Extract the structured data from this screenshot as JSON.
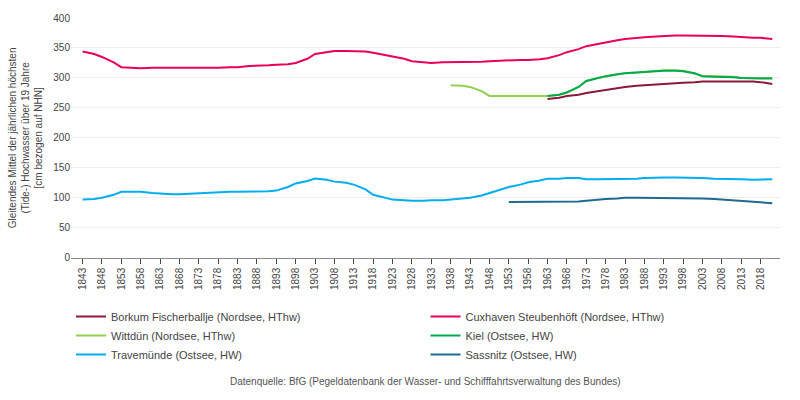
{
  "chart_data": {
    "type": "line",
    "y_label": "Gleitendes Mittel der jährlichen höchsten\n(Tide-) Hochwasser über 19 Jahre\n[cm bezogen auf NHN]",
    "annotations": [
      "Datenquelle: BfG (Pegeldatenbank der Wasser- und Schifffahrtsverwaltung des Bundes)"
    ],
    "xlim": [
      1840,
      2023
    ],
    "xticks": [
      1843,
      1848,
      1853,
      1858,
      1863,
      1868,
      1873,
      1878,
      1883,
      1888,
      1893,
      1898,
      1903,
      1908,
      1913,
      1918,
      1923,
      1928,
      1933,
      1938,
      1943,
      1948,
      1953,
      1958,
      1963,
      1968,
      1973,
      1978,
      1983,
      1988,
      1993,
      1998,
      2003,
      2008,
      2013,
      2018
    ],
    "ylim": [
      0,
      400
    ],
    "yticks": [
      0,
      50,
      100,
      150,
      200,
      250,
      300,
      350,
      400
    ],
    "grid": "y",
    "legend": "bottom",
    "series": [
      {
        "name": "Borkum Fischerballje (Nordsee, HThw)",
        "color": "#8B1A3A",
        "x": [
          1963,
          1966,
          1968,
          1971,
          1973,
          1976,
          1978,
          1981,
          1983,
          1986,
          1988,
          1991,
          1993,
          1996,
          1998,
          2001,
          2003,
          2006,
          2008,
          2011,
          2013,
          2016,
          2018,
          2021
        ],
        "values": [
          265,
          267,
          270,
          272,
          275,
          278,
          281,
          283,
          285,
          287,
          288,
          289,
          290,
          291,
          292,
          293,
          294,
          294,
          294,
          295,
          295,
          294,
          293,
          290
        ]
      },
      {
        "name": "Cuxhaven Steubenhöft (Nordsee, HThw)",
        "color": "#E8005A",
        "x": [
          1843,
          1846,
          1848,
          1851,
          1853,
          1856,
          1858,
          1861,
          1863,
          1866,
          1868,
          1871,
          1873,
          1876,
          1878,
          1881,
          1883,
          1886,
          1888,
          1891,
          1893,
          1896,
          1898,
          1901,
          1903,
          1906,
          1908,
          1911,
          1913,
          1916,
          1918,
          1921,
          1923,
          1926,
          1928,
          1931,
          1933,
          1936,
          1938,
          1941,
          1943,
          1946,
          1948,
          1951,
          1953,
          1956,
          1958,
          1961,
          1963,
          1966,
          1968,
          1971,
          1973,
          1976,
          1978,
          1981,
          1983,
          1986,
          1988,
          1991,
          1993,
          1996,
          1998,
          2001,
          2003,
          2006,
          2008,
          2011,
          2013,
          2016,
          2018,
          2021
        ],
        "values": [
          344,
          340,
          335,
          326,
          318,
          317,
          316,
          317,
          317,
          317,
          317,
          316,
          316,
          317,
          317,
          318,
          318,
          320,
          320,
          321,
          322,
          323,
          325,
          332,
          340,
          343,
          345,
          345,
          345,
          344,
          342,
          338,
          335,
          332,
          328,
          326,
          325,
          326,
          326,
          326,
          327,
          327,
          328,
          329,
          330,
          330,
          330,
          331,
          333,
          338,
          343,
          348,
          353,
          357,
          360,
          363,
          365,
          367,
          368,
          369,
          370,
          371,
          371,
          371,
          371,
          370,
          370,
          369,
          368,
          367,
          367,
          365
        ]
      },
      {
        "name": "Wittdün (Nordsee, HThw)",
        "color": "#92D050",
        "x": [
          1938,
          1941,
          1943,
          1946,
          1948,
          1951,
          1953,
          1956,
          1958,
          1961,
          1963,
          1966,
          1968,
          1971,
          1973,
          1976,
          1978,
          1981,
          1983,
          1986,
          1988,
          1991,
          1993,
          1996,
          1998,
          2001,
          2003,
          2006,
          2008,
          2011,
          2013,
          2016,
          2018,
          2021
        ],
        "values": [
          288,
          287,
          285,
          278,
          270,
          270,
          270,
          270,
          271,
          270,
          270,
          272,
          275,
          285,
          295,
          300,
          302,
          305,
          308,
          309,
          310,
          312,
          313,
          313,
          312,
          307,
          303,
          303,
          303,
          302,
          300,
          300,
          299,
          300
        ]
      },
      {
        "name": "Kiel (Ostsee, HW)",
        "color": "#00A850",
        "x": [
          1963,
          1966,
          1968,
          1971,
          1973,
          1976,
          1978,
          1981,
          1983,
          1986,
          1988,
          1991,
          1993,
          1996,
          1998,
          2001,
          2003,
          2006,
          2008,
          2011,
          2013,
          2016,
          2018,
          2021
        ],
        "values": [
          270,
          272,
          276,
          285,
          295,
          300,
          303,
          306,
          308,
          309,
          310,
          311,
          312,
          312,
          311,
          308,
          303,
          302,
          302,
          301,
          300,
          299,
          299,
          299
        ]
      },
      {
        "name": "Travemünde (Ostsee, HW)",
        "color": "#00AEEF",
        "x": [
          1843,
          1846,
          1848,
          1851,
          1853,
          1856,
          1858,
          1861,
          1863,
          1866,
          1868,
          1871,
          1873,
          1876,
          1878,
          1881,
          1883,
          1886,
          1888,
          1891,
          1893,
          1896,
          1898,
          1901,
          1903,
          1906,
          1908,
          1911,
          1913,
          1916,
          1918,
          1921,
          1923,
          1926,
          1928,
          1931,
          1933,
          1936,
          1938,
          1941,
          1943,
          1946,
          1948,
          1951,
          1953,
          1956,
          1958,
          1961,
          1963,
          1966,
          1968,
          1971,
          1973,
          1976,
          1978,
          1981,
          1983,
          1986,
          1988,
          1991,
          1993,
          1996,
          1998,
          2001,
          2003,
          2006,
          2008,
          2011,
          2013,
          2016,
          2018,
          2021
        ],
        "values": [
          97,
          98,
          100,
          105,
          110,
          110,
          110,
          108,
          107,
          106,
          106,
          107,
          108,
          109,
          110,
          110,
          110,
          110,
          110,
          111,
          112,
          118,
          124,
          128,
          132,
          130,
          127,
          125,
          122,
          114,
          105,
          100,
          97,
          96,
          95,
          95,
          96,
          96,
          97,
          98,
          100,
          104,
          108,
          113,
          118,
          122,
          126,
          129,
          132,
          132,
          133,
          133,
          131,
          131,
          131,
          131,
          131,
          132,
          133,
          134,
          134,
          134,
          134,
          133,
          133,
          132,
          132,
          131,
          131,
          130,
          130,
          131
        ]
      },
      {
        "name": "Sassnitz (Ostsee, HW)",
        "color": "#1F6B8E",
        "x": [
          1953,
          1956,
          1958,
          1961,
          1963,
          1966,
          1968,
          1971,
          1973,
          1976,
          1978,
          1981,
          1983,
          1986,
          1988,
          1991,
          1993,
          1996,
          1998,
          2001,
          2003,
          2006,
          2008,
          2011,
          2013,
          2016,
          2018,
          2021
        ],
        "values": [
          93,
          93,
          93,
          93,
          93,
          93,
          93,
          94,
          95,
          97,
          98,
          99,
          100,
          100,
          100,
          100,
          100,
          100,
          100,
          99,
          99,
          98,
          97,
          96,
          95,
          93,
          92,
          91
        ]
      }
    ]
  }
}
